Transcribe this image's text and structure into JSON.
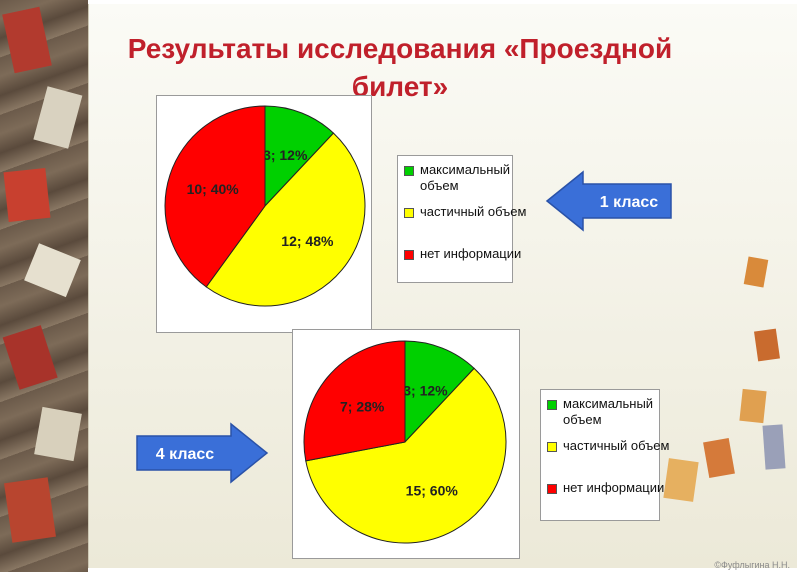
{
  "title": "Результаты исследования «Проездной билет»",
  "footer": "©Фуфлыгина Н.Н.",
  "arrows": {
    "top": "1 класс",
    "bottom": "4 класс"
  },
  "colors": {
    "green": "#00d000",
    "yellow": "#ffff00",
    "red": "#ff0000",
    "arrow": "#3a6fd8",
    "title": "#c0202b"
  },
  "chart_data": [
    {
      "type": "pie",
      "title": "",
      "categories": [
        "максимальный объем",
        "частичный объем",
        "нет информации"
      ],
      "values": [
        3,
        12,
        10
      ],
      "percents": [
        12,
        48,
        40
      ],
      "labels": [
        "3; 12%",
        "12; 48%",
        "10; 40%"
      ],
      "legend": [
        "максимальный объем",
        "частичный объем",
        "нет информации"
      ],
      "legend_position": "right"
    },
    {
      "type": "pie",
      "title": "",
      "categories": [
        "максимальный объем",
        "частичный объем",
        "нет информации"
      ],
      "values": [
        3,
        15,
        7
      ],
      "percents": [
        12,
        60,
        28
      ],
      "labels": [
        "3; 12%",
        "15; 60%",
        "7; 28%"
      ],
      "legend": [
        "максимальный объем",
        "частичный объем",
        "нет информации"
      ],
      "legend_position": "right"
    }
  ]
}
